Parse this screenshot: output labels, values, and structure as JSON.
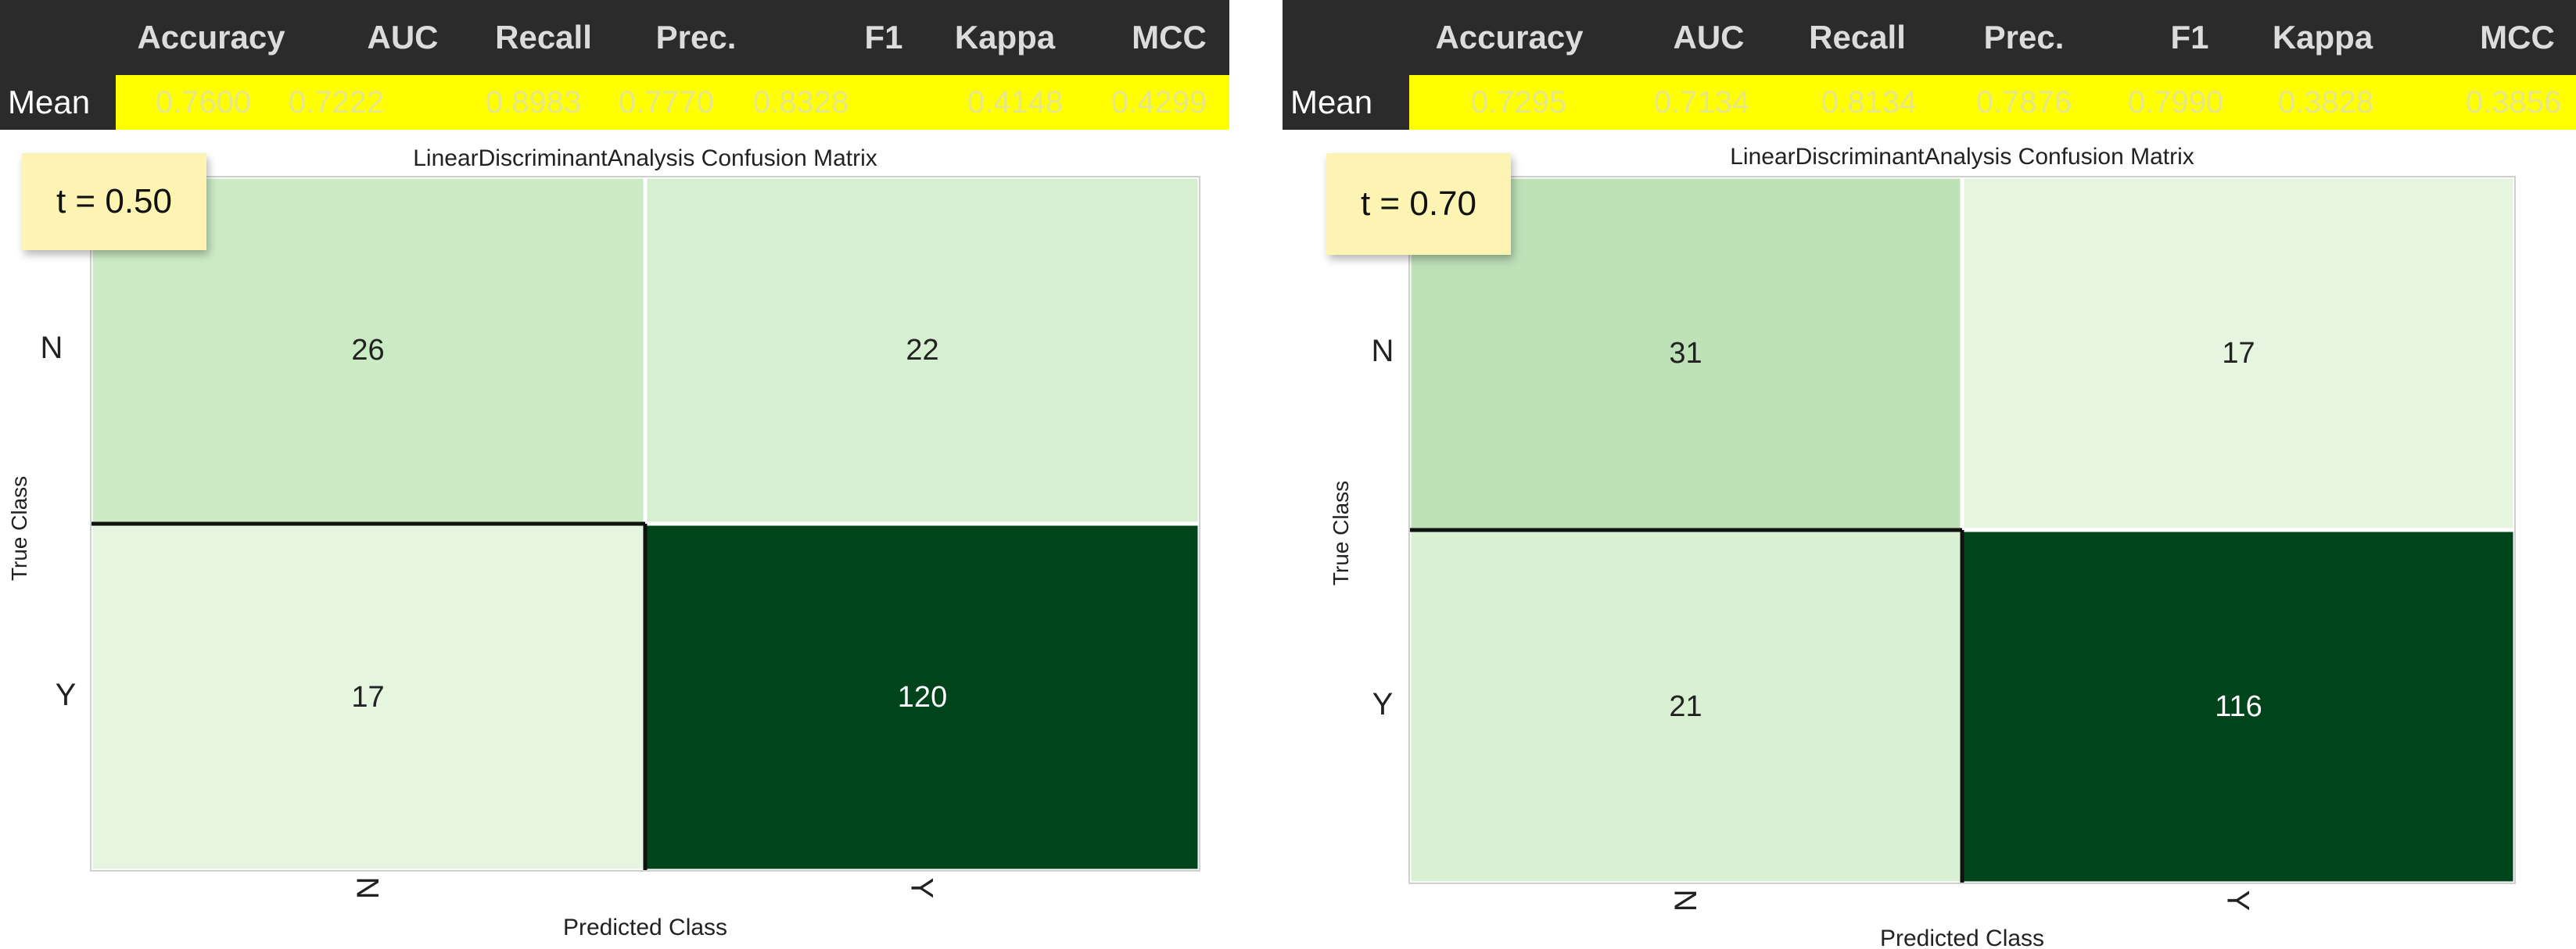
{
  "colors": {
    "header_bg": "#2b2b2b",
    "header_text": "#dcdcdc",
    "mean_bg": "#ffff00",
    "mean_value_text": "#e6e68a",
    "sticky_bg": "#fdf4b4",
    "cell_low": "#e5f5e0",
    "cell_mid": "#c7e9c0",
    "cell_high": "#00441b"
  },
  "metrics_headers": [
    "Accuracy",
    "AUC",
    "Recall",
    "Prec.",
    "F1",
    "Kappa",
    "MCC"
  ],
  "panels": [
    {
      "mean_label": "Mean",
      "mean_values": [
        "0.7600",
        "0.7222",
        "0.8983",
        "0.7770",
        "0.8328",
        "0.4148",
        "0.4299"
      ],
      "sticky": "t = 0.50"
    },
    {
      "mean_label": "Mean",
      "mean_values": [
        "0.7295",
        "0.7134",
        "0.8134",
        "0.7876",
        "0.7990",
        "0.3828",
        "0.3856"
      ],
      "sticky": "t = 0.70"
    }
  ],
  "chart_data": [
    {
      "type": "heatmap",
      "title": "LinearDiscriminantAnalysis Confusion Matrix",
      "xlabel": "Predicted Class",
      "ylabel": "True Class",
      "x_categories": [
        "N",
        "Y"
      ],
      "y_categories": [
        "N",
        "Y"
      ],
      "values": [
        [
          26,
          22
        ],
        [
          17,
          120
        ]
      ],
      "colormap": "Greens",
      "grid": false
    },
    {
      "type": "heatmap",
      "title": "LinearDiscriminantAnalysis Confusion Matrix",
      "xlabel": "Predicted Class",
      "ylabel": "True Class",
      "x_categories": [
        "N",
        "Y"
      ],
      "y_categories": [
        "N",
        "Y"
      ],
      "values": [
        [
          31,
          17
        ],
        [
          21,
          116
        ]
      ],
      "colormap": "Greens",
      "grid": false
    }
  ]
}
